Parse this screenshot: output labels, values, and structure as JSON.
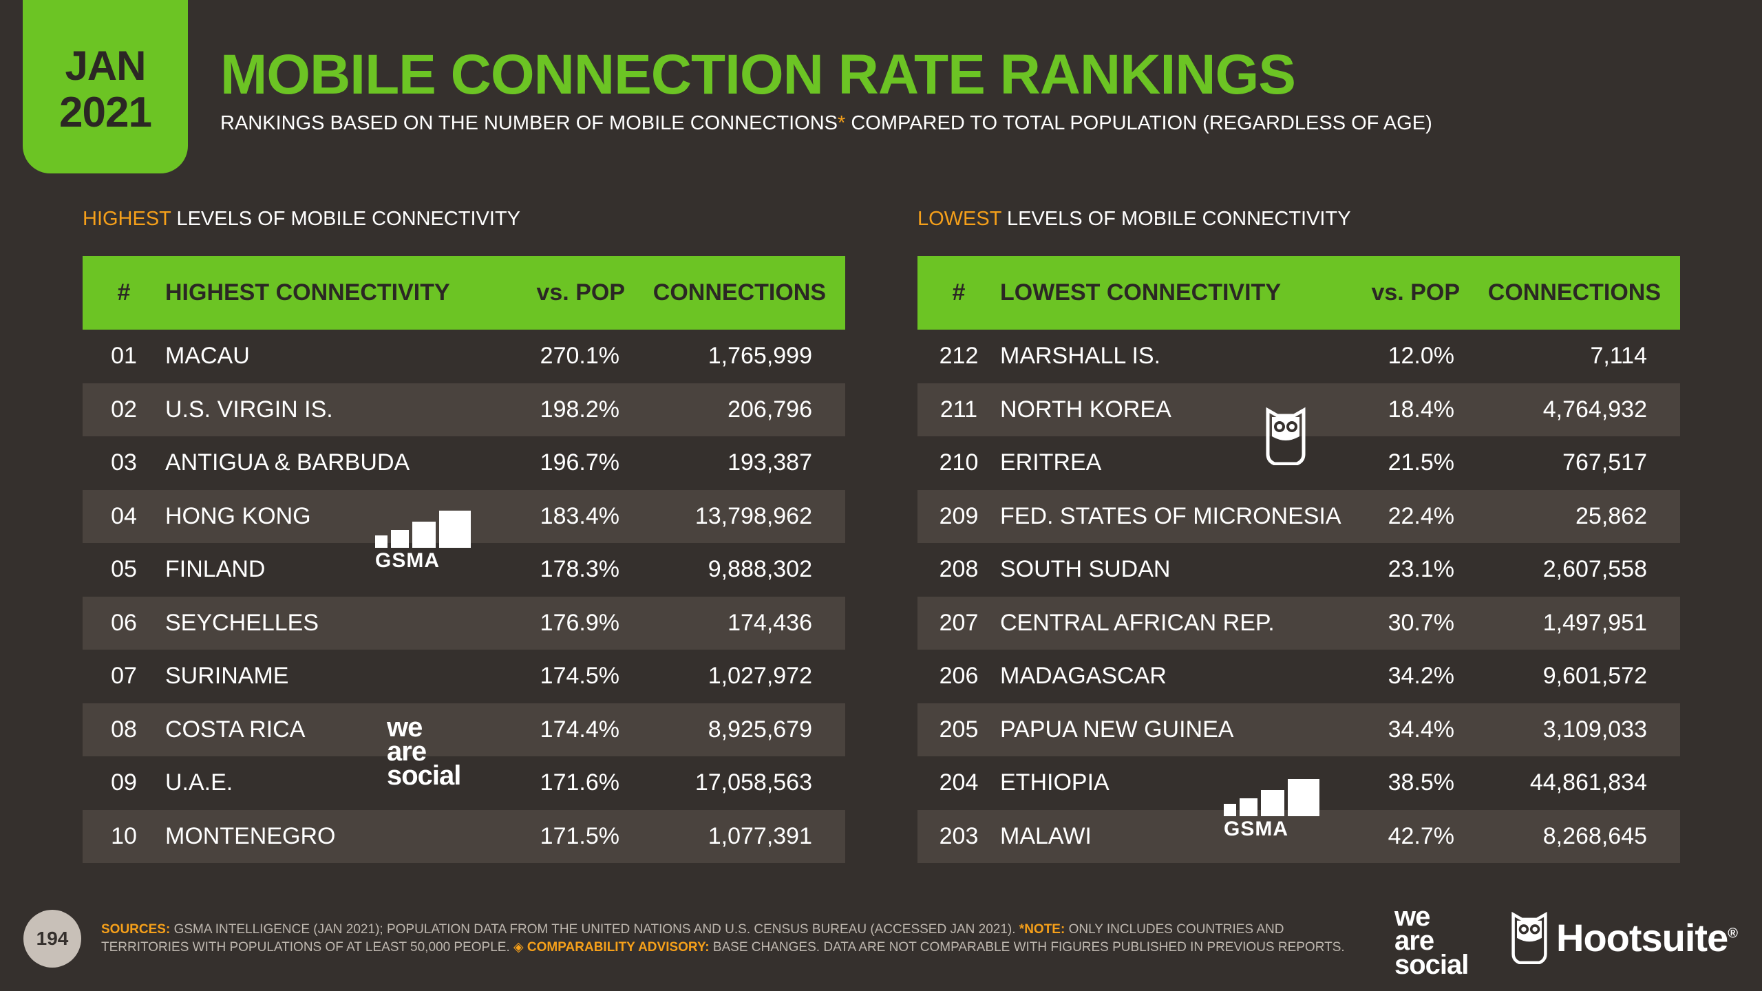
{
  "header": {
    "month": "JAN",
    "year": "2021",
    "title": "MOBILE CONNECTION RATE RANKINGS",
    "subtitle_before": "RANKINGS BASED ON THE NUMBER OF MOBILE CONNECTIONS",
    "subtitle_asterisk": "*",
    "subtitle_after": " COMPARED TO TOTAL POPULATION (REGARDLESS OF AGE)"
  },
  "highest": {
    "heading_highlight": "HIGHEST",
    "heading_rest": " LEVELS OF MOBILE CONNECTIVITY",
    "columns": [
      "#",
      "HIGHEST CONNECTIVITY",
      "vs. POP",
      "CONNECTIONS"
    ],
    "rows": [
      [
        "01",
        "MACAU",
        "270.1%",
        "1,765,999"
      ],
      [
        "02",
        "U.S. VIRGIN IS.",
        "198.2%",
        "206,796"
      ],
      [
        "03",
        "ANTIGUA & BARBUDA",
        "196.7%",
        "193,387"
      ],
      [
        "04",
        "HONG KONG",
        "183.4%",
        "13,798,962"
      ],
      [
        "05",
        "FINLAND",
        "178.3%",
        "9,888,302"
      ],
      [
        "06",
        "SEYCHELLES",
        "176.9%",
        "174,436"
      ],
      [
        "07",
        "SURINAME",
        "174.5%",
        "1,027,972"
      ],
      [
        "08",
        "COSTA RICA",
        "174.4%",
        "8,925,679"
      ],
      [
        "09",
        "U.A.E.",
        "171.6%",
        "17,058,563"
      ],
      [
        "10",
        "MONTENEGRO",
        "171.5%",
        "1,077,391"
      ]
    ]
  },
  "lowest": {
    "heading_highlight": "LOWEST",
    "heading_rest": " LEVELS OF MOBILE CONNECTIVITY",
    "columns": [
      "#",
      "LOWEST CONNECTIVITY",
      "vs. POP",
      "CONNECTIONS"
    ],
    "rows": [
      [
        "212",
        "MARSHALL IS.",
        "12.0%",
        "7,114"
      ],
      [
        "211",
        "NORTH KOREA",
        "18.4%",
        "4,764,932"
      ],
      [
        "210",
        "ERITREA",
        "21.5%",
        "767,517"
      ],
      [
        "209",
        "FED. STATES OF MICRONESIA",
        "22.4%",
        "25,862"
      ],
      [
        "208",
        "SOUTH SUDAN",
        "23.1%",
        "2,607,558"
      ],
      [
        "207",
        "CENTRAL AFRICAN REP.",
        "30.7%",
        "1,497,951"
      ],
      [
        "206",
        "MADAGASCAR",
        "34.2%",
        "9,601,572"
      ],
      [
        "205",
        "PAPUA NEW GUINEA",
        "34.4%",
        "3,109,033"
      ],
      [
        "204",
        "ETHIOPIA",
        "38.5%",
        "44,861,834"
      ],
      [
        "203",
        "MALAWI",
        "42.7%",
        "8,268,645"
      ]
    ]
  },
  "logos": {
    "gsma": "GSMA",
    "we": "we",
    "are": "are",
    "social": "social",
    "hootsuite": "Hootsuite",
    "registered": "®"
  },
  "footer": {
    "page_number": "194",
    "sources_label": "SOURCES:",
    "sources_text": " GSMA INTELLIGENCE (JAN 2021); POPULATION DATA FROM THE UNITED NATIONS AND U.S. CENSUS BUREAU (ACCESSED JAN 2021). ",
    "note_label": "*NOTE:",
    "note_text": " ONLY INCLUDES COUNTRIES AND",
    "line2_text": "TERRITORIES WITH POPULATIONS OF AT LEAST 50,000 PEOPLE. ",
    "advisory_symbol": "◈",
    "advisory_label": " COMPARABILITY ADVISORY:",
    "advisory_text": " BASE CHANGES. DATA ARE NOT COMPARABLE WITH FIGURES PUBLISHED IN PREVIOUS REPORTS."
  },
  "colors": {
    "background": "#35302d",
    "green": "#6cc424",
    "orange": "#f6a01a",
    "row_alt": "#4a433e"
  }
}
